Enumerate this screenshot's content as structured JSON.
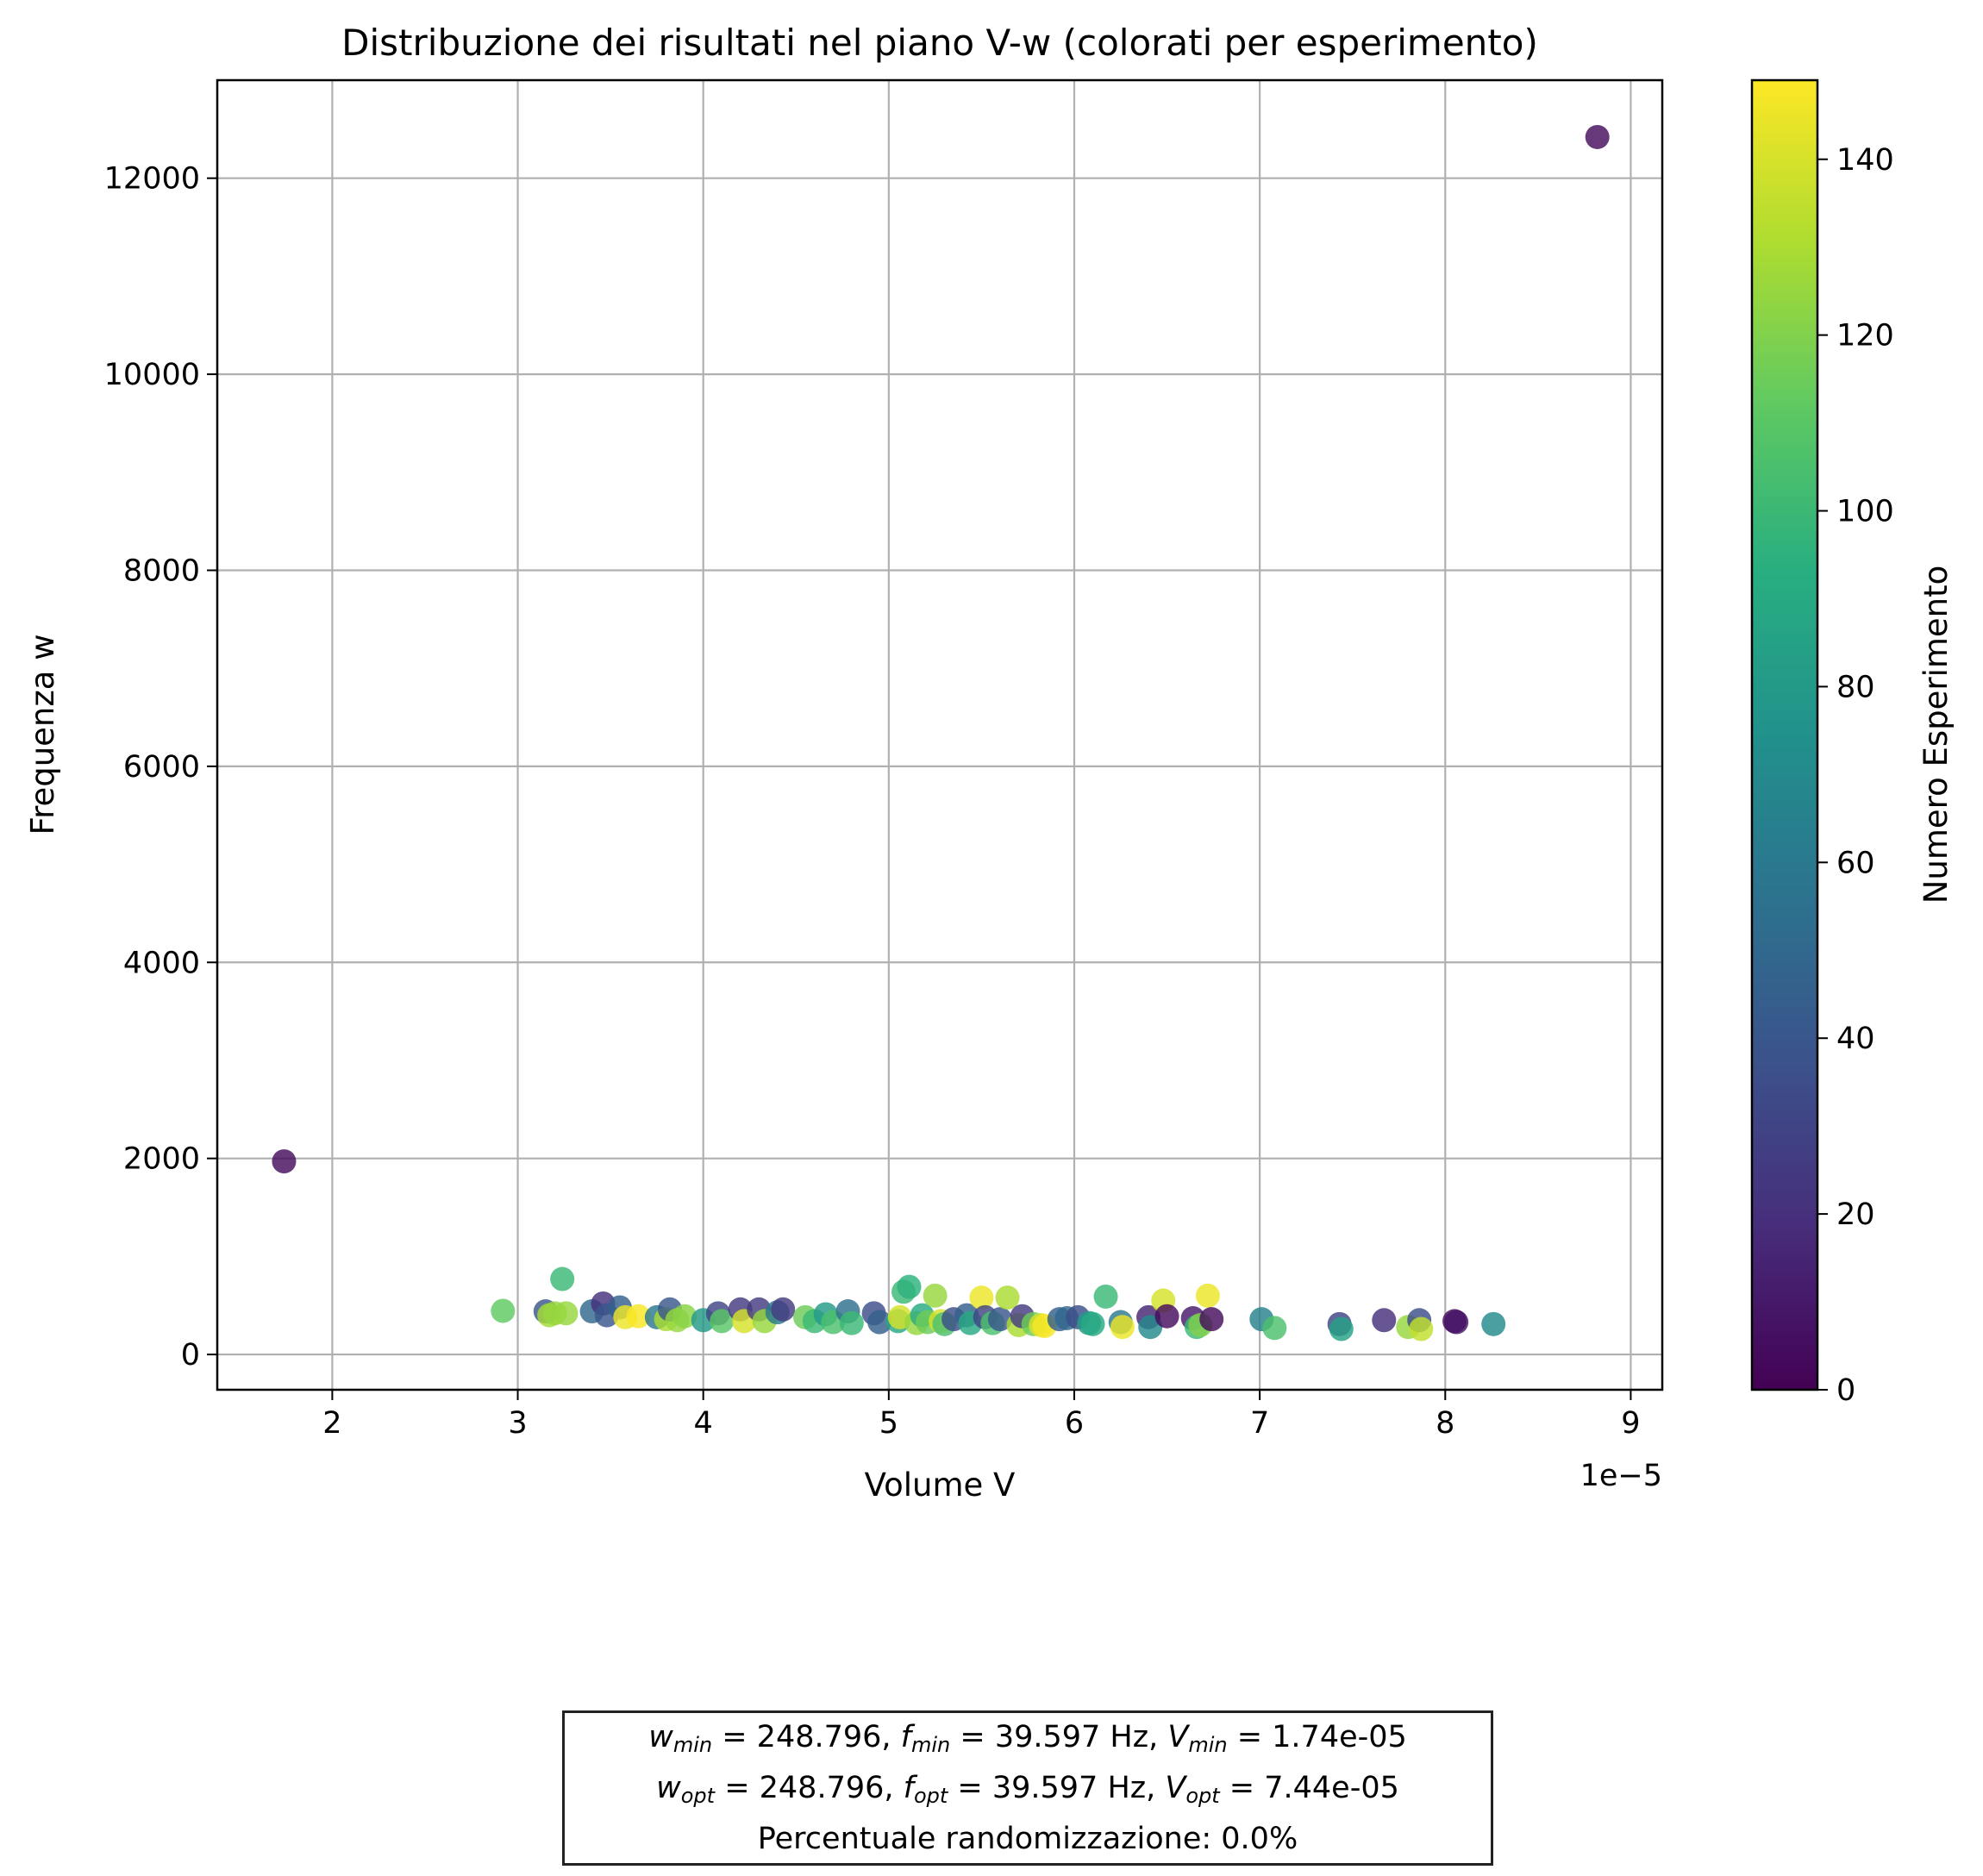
{
  "chart_data": {
    "type": "scatter",
    "title": "Distribuzione dei risultati nel piano V-w (colorati per esperimento)",
    "xlabel": "Volume V",
    "ylabel": "Frequenza w",
    "x_offset_label": "1e−5",
    "x_scale": 1e-05,
    "xlim": [
      1.38,
      9.17
    ],
    "ylim": [
      -360,
      13000
    ],
    "xticks": [
      2,
      3,
      4,
      5,
      6,
      7,
      8,
      9
    ],
    "yticks": [
      0,
      2000,
      4000,
      6000,
      8000,
      10000,
      12000
    ],
    "grid": true,
    "colormap": "viridis",
    "colorbar": {
      "label": "Numero Esperimento",
      "range": [
        0,
        149
      ],
      "ticks": [
        0,
        20,
        40,
        60,
        80,
        100,
        120,
        140
      ]
    },
    "points": [
      {
        "x": 8.82,
        "y": 12420,
        "c": 5
      },
      {
        "x": 1.74,
        "y": 1970,
        "c": 5
      },
      {
        "x": 2.92,
        "y": 445,
        "c": 112
      },
      {
        "x": 3.15,
        "y": 440,
        "c": 40
      },
      {
        "x": 3.17,
        "y": 400,
        "c": 128
      },
      {
        "x": 3.2,
        "y": 420,
        "c": 125
      },
      {
        "x": 3.24,
        "y": 770,
        "c": 100
      },
      {
        "x": 3.26,
        "y": 420,
        "c": 125
      },
      {
        "x": 3.4,
        "y": 440,
        "c": 50
      },
      {
        "x": 3.46,
        "y": 520,
        "c": 20
      },
      {
        "x": 3.48,
        "y": 400,
        "c": 40
      },
      {
        "x": 3.55,
        "y": 480,
        "c": 45
      },
      {
        "x": 3.58,
        "y": 380,
        "c": 145
      },
      {
        "x": 3.65,
        "y": 390,
        "c": 148
      },
      {
        "x": 3.75,
        "y": 380,
        "c": 60
      },
      {
        "x": 3.8,
        "y": 360,
        "c": 130
      },
      {
        "x": 3.82,
        "y": 460,
        "c": 40
      },
      {
        "x": 3.86,
        "y": 350,
        "c": 125
      },
      {
        "x": 3.9,
        "y": 390,
        "c": 122
      },
      {
        "x": 4.0,
        "y": 350,
        "c": 80
      },
      {
        "x": 4.08,
        "y": 420,
        "c": 30
      },
      {
        "x": 4.1,
        "y": 340,
        "c": 110
      },
      {
        "x": 4.2,
        "y": 460,
        "c": 25
      },
      {
        "x": 4.22,
        "y": 340,
        "c": 140
      },
      {
        "x": 4.3,
        "y": 460,
        "c": 25
      },
      {
        "x": 4.33,
        "y": 340,
        "c": 125
      },
      {
        "x": 4.4,
        "y": 430,
        "c": 60
      },
      {
        "x": 4.43,
        "y": 460,
        "c": 25
      },
      {
        "x": 4.55,
        "y": 380,
        "c": 115
      },
      {
        "x": 4.6,
        "y": 340,
        "c": 100
      },
      {
        "x": 4.66,
        "y": 410,
        "c": 80
      },
      {
        "x": 4.7,
        "y": 330,
        "c": 105
      },
      {
        "x": 4.78,
        "y": 440,
        "c": 55
      },
      {
        "x": 4.8,
        "y": 320,
        "c": 100
      },
      {
        "x": 4.92,
        "y": 420,
        "c": 35
      },
      {
        "x": 4.95,
        "y": 330,
        "c": 45
      },
      {
        "x": 5.05,
        "y": 340,
        "c": 90
      },
      {
        "x": 5.06,
        "y": 380,
        "c": 140
      },
      {
        "x": 5.08,
        "y": 640,
        "c": 100
      },
      {
        "x": 5.11,
        "y": 690,
        "c": 95
      },
      {
        "x": 5.15,
        "y": 320,
        "c": 125
      },
      {
        "x": 5.18,
        "y": 400,
        "c": 90
      },
      {
        "x": 5.21,
        "y": 330,
        "c": 115
      },
      {
        "x": 5.25,
        "y": 600,
        "c": 125
      },
      {
        "x": 5.28,
        "y": 340,
        "c": 140
      },
      {
        "x": 5.3,
        "y": 310,
        "c": 105
      },
      {
        "x": 5.35,
        "y": 360,
        "c": 35
      },
      {
        "x": 5.42,
        "y": 400,
        "c": 45
      },
      {
        "x": 5.44,
        "y": 320,
        "c": 90
      },
      {
        "x": 5.5,
        "y": 580,
        "c": 145
      },
      {
        "x": 5.52,
        "y": 380,
        "c": 30
      },
      {
        "x": 5.56,
        "y": 320,
        "c": 105
      },
      {
        "x": 5.6,
        "y": 360,
        "c": 40
      },
      {
        "x": 5.64,
        "y": 580,
        "c": 130
      },
      {
        "x": 5.7,
        "y": 300,
        "c": 130
      },
      {
        "x": 5.72,
        "y": 390,
        "c": 25
      },
      {
        "x": 5.78,
        "y": 310,
        "c": 115
      },
      {
        "x": 5.82,
        "y": 300,
        "c": 140
      },
      {
        "x": 5.84,
        "y": 290,
        "c": 148
      },
      {
        "x": 5.92,
        "y": 360,
        "c": 45
      },
      {
        "x": 5.96,
        "y": 370,
        "c": 50
      },
      {
        "x": 6.02,
        "y": 380,
        "c": 35
      },
      {
        "x": 6.08,
        "y": 320,
        "c": 80
      },
      {
        "x": 6.1,
        "y": 310,
        "c": 90
      },
      {
        "x": 6.17,
        "y": 590,
        "c": 100
      },
      {
        "x": 6.25,
        "y": 330,
        "c": 60
      },
      {
        "x": 6.26,
        "y": 280,
        "c": 145
      },
      {
        "x": 6.4,
        "y": 380,
        "c": 15
      },
      {
        "x": 6.41,
        "y": 280,
        "c": 70
      },
      {
        "x": 6.48,
        "y": 550,
        "c": 140
      },
      {
        "x": 6.5,
        "y": 390,
        "c": 5
      },
      {
        "x": 6.64,
        "y": 370,
        "c": 10
      },
      {
        "x": 6.66,
        "y": 280,
        "c": 100
      },
      {
        "x": 6.68,
        "y": 300,
        "c": 120
      },
      {
        "x": 6.72,
        "y": 600,
        "c": 145
      },
      {
        "x": 6.74,
        "y": 360,
        "c": 5
      },
      {
        "x": 7.01,
        "y": 360,
        "c": 65
      },
      {
        "x": 7.08,
        "y": 270,
        "c": 105
      },
      {
        "x": 7.43,
        "y": 310,
        "c": 30
      },
      {
        "x": 7.44,
        "y": 260,
        "c": 85
      },
      {
        "x": 7.67,
        "y": 350,
        "c": 20
      },
      {
        "x": 7.8,
        "y": 280,
        "c": 125
      },
      {
        "x": 7.86,
        "y": 350,
        "c": 35
      },
      {
        "x": 7.87,
        "y": 260,
        "c": 135
      },
      {
        "x": 8.05,
        "y": 340,
        "c": 5
      },
      {
        "x": 8.06,
        "y": 330,
        "c": 8
      },
      {
        "x": 8.26,
        "y": 310,
        "c": 70
      }
    ]
  },
  "info_box": {
    "line1": {
      "w_sym": "w",
      "w_sub": "min",
      "w_val": " = 248.796, ",
      "f_sym": "f",
      "f_sub": "min",
      "f_val": " = 39.597 Hz, ",
      "v_sym": "V",
      "v_sub": "min",
      "v_val": " = 1.74e-05"
    },
    "line2": {
      "w_sym": "w",
      "w_sub": "opt",
      "w_val": " = 248.796, ",
      "f_sym": "f",
      "f_sub": "opt",
      "f_val": " = 39.597 Hz, ",
      "v_sym": "V",
      "v_sub": "opt",
      "v_val": " = 7.44e-05"
    },
    "line3": "Percentuale randomizzazione: 0.0%"
  }
}
